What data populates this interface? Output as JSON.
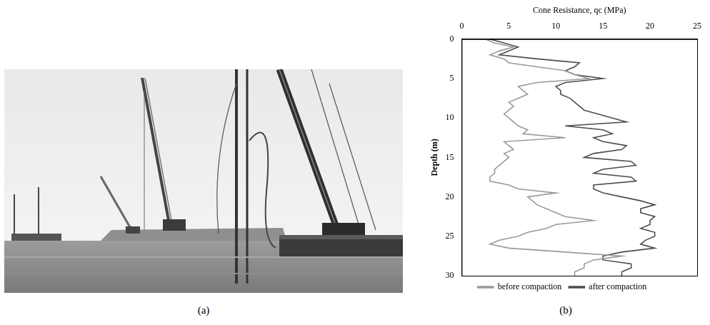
{
  "panel_labels": [
    "(a)",
    "(b)"
  ],
  "chart_data": {
    "type": "line",
    "x_label": "Cone Resistance, qc (MPa)",
    "y_label": "Depth (m)",
    "y": [
      0,
      0.5,
      1,
      1.5,
      2,
      2.5,
      3,
      3.5,
      4,
      4.5,
      5,
      5.5,
      6,
      6.5,
      7,
      7.5,
      8,
      8.5,
      9,
      9.5,
      10,
      10.5,
      11,
      11.5,
      12,
      12.5,
      13,
      13.5,
      14,
      14.5,
      15,
      15.5,
      16,
      16.5,
      17,
      17.5,
      18,
      18.5,
      19,
      19.5,
      20,
      20.5,
      21,
      21.5,
      22,
      22.5,
      23,
      23.5,
      24,
      24.5,
      25,
      25.5,
      26,
      26.5,
      27,
      27.5,
      28,
      28.5,
      29,
      29.5,
      30
    ],
    "series": [
      {
        "name": "before compaction",
        "color": "#9a9a9a",
        "values": [
          2.5,
          3.5,
          5.5,
          4,
          3,
          4.5,
          5,
          8,
          11,
          12,
          13.5,
          8,
          6,
          6.5,
          7,
          6,
          5,
          5.5,
          5,
          4.5,
          5,
          5.5,
          6,
          7,
          6.5,
          11,
          4.5,
          5,
          5.5,
          4.5,
          5,
          4.5,
          4,
          3.5,
          3.5,
          3,
          3,
          5,
          6,
          10,
          7,
          7.5,
          8,
          9,
          10,
          11,
          14,
          10,
          9,
          7,
          6,
          4,
          3,
          5,
          11,
          17,
          14,
          13,
          13,
          12,
          12
        ]
      },
      {
        "name": "after compaction",
        "color": "#4d4d4d",
        "values": [
          3,
          4.5,
          6,
          5,
          4,
          8,
          12.5,
          12,
          11,
          12,
          15,
          11,
          10,
          10.5,
          10.5,
          11.5,
          12,
          12.5,
          13,
          14.5,
          16,
          17.5,
          11,
          15,
          16,
          14,
          15,
          17.5,
          17,
          14,
          13,
          18,
          18.5,
          15,
          14,
          18,
          18.5,
          14,
          14,
          15,
          17,
          19,
          20.5,
          19,
          19,
          20.5,
          20,
          20,
          19,
          20.5,
          20.5,
          19.5,
          19,
          20.5,
          17,
          15,
          15,
          18,
          18,
          17,
          17
        ]
      }
    ],
    "xlim": [
      0,
      25
    ],
    "xticks": [
      0,
      5,
      10,
      15,
      20,
      25
    ],
    "ylim": [
      0,
      30
    ],
    "yticks": [
      0,
      5,
      10,
      15,
      20,
      25,
      30
    ],
    "grid": false,
    "legend": "bottom"
  }
}
